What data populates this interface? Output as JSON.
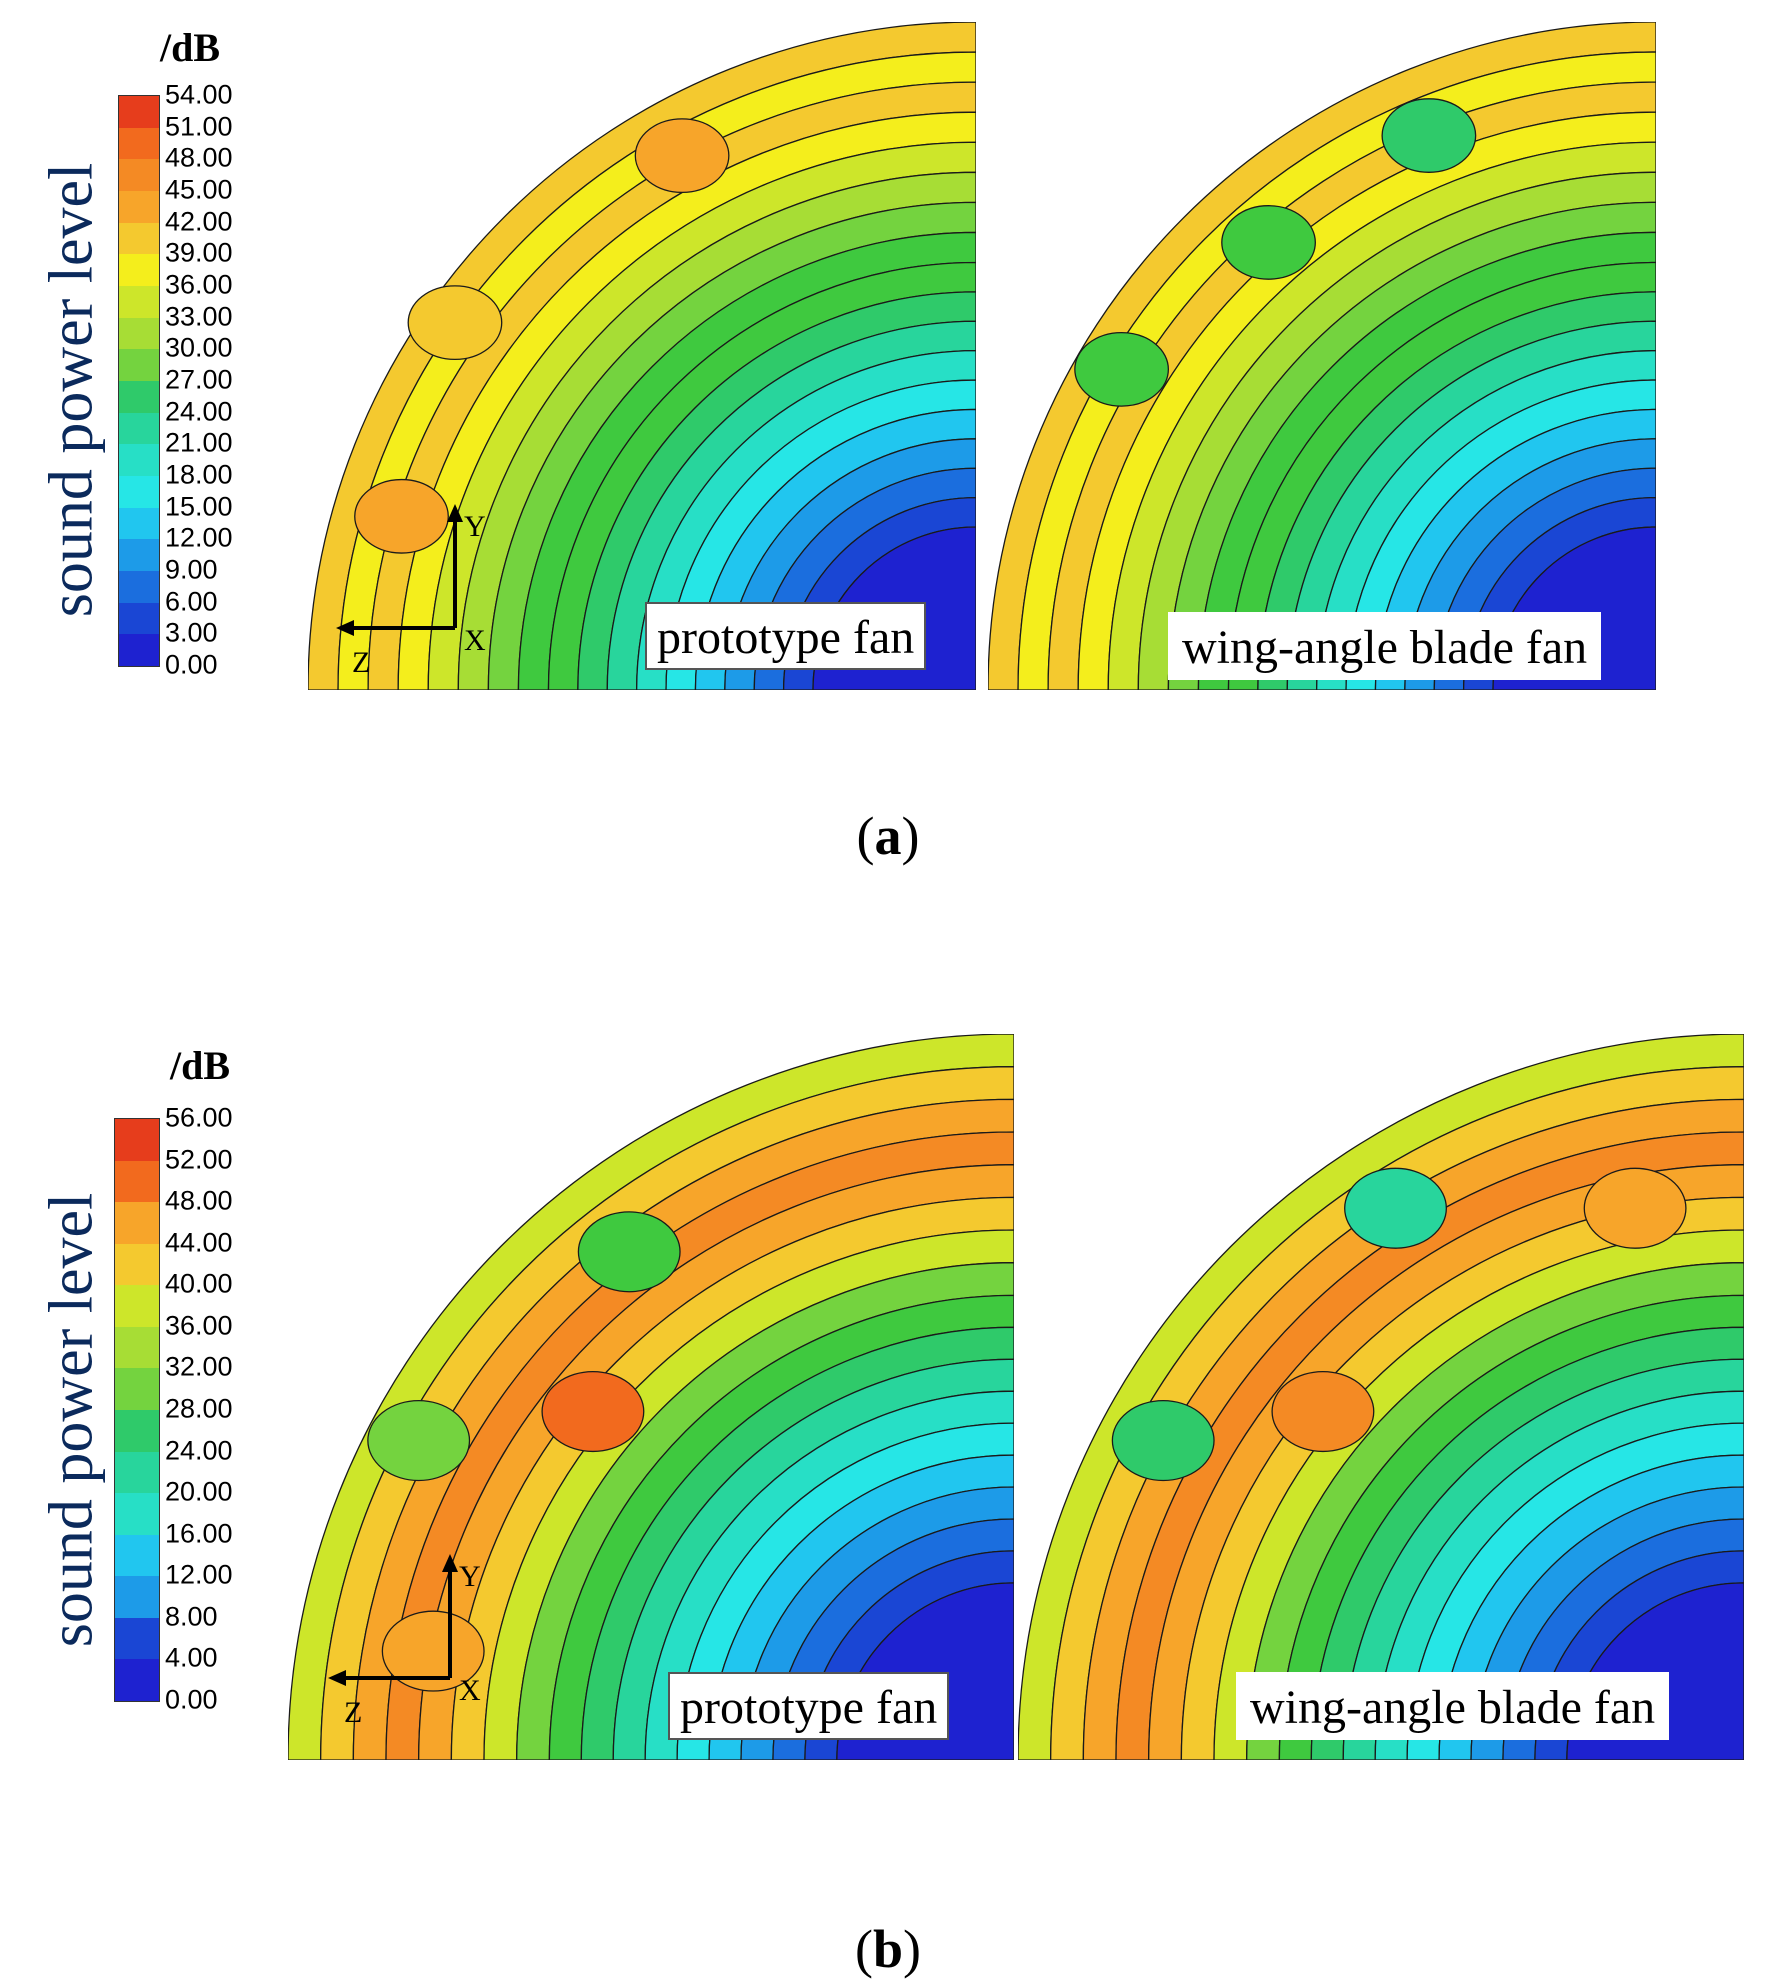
{
  "chart_data": [
    {
      "type": "heatmap",
      "panel": "(a)",
      "caption_letter": "a",
      "ylabel": "sound power level",
      "unit": "/dB",
      "colorbar_ticks": [
        "54.00",
        "51.00",
        "48.00",
        "45.00",
        "42.00",
        "39.00",
        "36.00",
        "33.00",
        "30.00",
        "27.00",
        "24.00",
        "21.00",
        "18.00",
        "15.00",
        "12.00",
        "9.00",
        "6.00",
        "3.00",
        "0.00"
      ],
      "range": [
        0,
        54
      ],
      "colors": [
        "#e63d1c",
        "#f26a1e",
        "#f48a24",
        "#f7a52a",
        "#f4c92f",
        "#f4ee1c",
        "#cde62a",
        "#a7dd35",
        "#74d33f",
        "#3fc93f",
        "#2fca6a",
        "#28d59c",
        "#27dfc6",
        "#26e6e6",
        "#21c6ef",
        "#1d9be8",
        "#1b6ede",
        "#1a46d4",
        "#1e22d0"
      ],
      "maps": [
        {
          "label": "prototype fan",
          "axes": [
            "Y",
            "X",
            "Z"
          ]
        },
        {
          "label": "wing-angle blade fan"
        }
      ]
    },
    {
      "type": "heatmap",
      "panel": "(b)",
      "caption_letter": "b",
      "ylabel": "sound power level",
      "unit": "/dB",
      "colorbar_ticks": [
        "56.00",
        "52.00",
        "48.00",
        "44.00",
        "40.00",
        "36.00",
        "32.00",
        "28.00",
        "24.00",
        "20.00",
        "16.00",
        "12.00",
        "8.00",
        "4.00",
        "0.00"
      ],
      "range": [
        0,
        56
      ],
      "colors": [
        "#e63d1c",
        "#f26a1e",
        "#f48a24",
        "#f7a52a",
        "#f4c92f",
        "#f4ee1c",
        "#cde62a",
        "#a7dd35",
        "#74d33f",
        "#3fc93f",
        "#2fca6a",
        "#28d59c",
        "#27dfc6",
        "#26e6e6",
        "#21c6ef",
        "#1d9be8",
        "#1b6ede",
        "#1a46d4",
        "#1e22d0"
      ],
      "maps": [
        {
          "label": "prototype fan",
          "axes": [
            "Y",
            "X",
            "Z"
          ]
        },
        {
          "label": "wing-angle blade fan"
        }
      ]
    }
  ]
}
